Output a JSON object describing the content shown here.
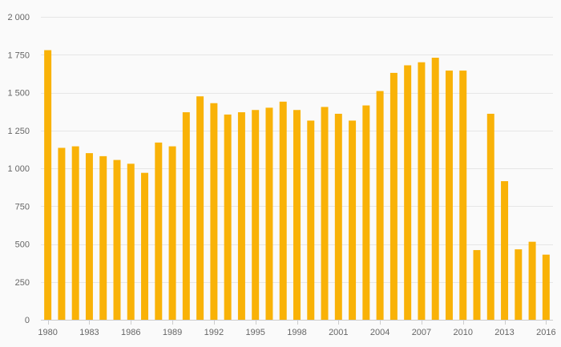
{
  "chart_data": {
    "type": "bar",
    "title": "",
    "xlabel": "",
    "ylabel": "",
    "ylim": [
      0,
      2000
    ],
    "yticks": [
      0,
      250,
      500,
      750,
      1000,
      1250,
      1500,
      1750,
      2000
    ],
    "ytick_labels": [
      "0",
      "250",
      "500",
      "750",
      "1 000",
      "1 250",
      "1 500",
      "1 750",
      "2 000"
    ],
    "xtick_labels": [
      "1980",
      "1983",
      "1986",
      "1989",
      "1992",
      "1995",
      "1998",
      "2001",
      "2004",
      "2007",
      "2010",
      "2013",
      "2016"
    ],
    "categories": [
      "1980",
      "1981",
      "1982",
      "1983",
      "1984",
      "1985",
      "1986",
      "1987",
      "1988",
      "1989",
      "1990",
      "1991",
      "1992",
      "1993",
      "1994",
      "1995",
      "1996",
      "1997",
      "1998",
      "1999",
      "2000",
      "2001",
      "2002",
      "2003",
      "2004",
      "2005",
      "2006",
      "2007",
      "2008",
      "2009",
      "2010",
      "2011",
      "2012",
      "2013",
      "2014",
      "2015",
      "2016"
    ],
    "values": [
      1780,
      1135,
      1145,
      1100,
      1080,
      1055,
      1030,
      970,
      1170,
      1145,
      1370,
      1475,
      1430,
      1355,
      1370,
      1385,
      1400,
      1440,
      1385,
      1315,
      1405,
      1360,
      1315,
      1415,
      1510,
      1630,
      1680,
      1700,
      1730,
      1645,
      1645,
      460,
      1360,
      915,
      465,
      515,
      430
    ],
    "bar_color": "#f9b207",
    "grid": true
  }
}
